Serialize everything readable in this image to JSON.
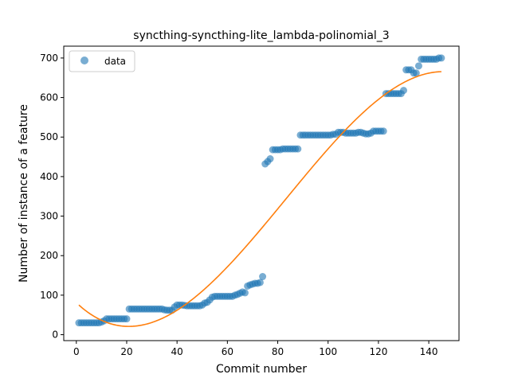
{
  "chart_data": {
    "type": "scatter",
    "title": "syncthing-syncthing-lite_lambda-polinomial_3",
    "xlabel": "Commit number",
    "ylabel": "Number of instance of a feature",
    "xlim": [
      -5,
      152
    ],
    "ylim": [
      -15,
      730
    ],
    "xticks": [
      0,
      20,
      40,
      60,
      80,
      100,
      120,
      140
    ],
    "yticks": [
      0,
      100,
      200,
      300,
      400,
      500,
      600,
      700
    ],
    "legend": {
      "position": "top-left",
      "entries": [
        "data"
      ]
    },
    "colors": {
      "data": "#1f77b4",
      "fit": "#ff7f0e"
    },
    "series": [
      {
        "name": "data",
        "kind": "scatter",
        "points": [
          [
            1,
            30
          ],
          [
            2,
            30
          ],
          [
            3,
            30
          ],
          [
            4,
            30
          ],
          [
            5,
            30
          ],
          [
            6,
            30
          ],
          [
            7,
            30
          ],
          [
            8,
            30
          ],
          [
            9,
            30
          ],
          [
            10,
            32
          ],
          [
            11,
            35
          ],
          [
            12,
            40
          ],
          [
            13,
            40
          ],
          [
            14,
            40
          ],
          [
            15,
            40
          ],
          [
            16,
            40
          ],
          [
            17,
            40
          ],
          [
            18,
            40
          ],
          [
            19,
            40
          ],
          [
            20,
            40
          ],
          [
            21,
            65
          ],
          [
            22,
            65
          ],
          [
            23,
            65
          ],
          [
            24,
            65
          ],
          [
            25,
            65
          ],
          [
            26,
            65
          ],
          [
            27,
            65
          ],
          [
            28,
            65
          ],
          [
            29,
            65
          ],
          [
            30,
            65
          ],
          [
            31,
            65
          ],
          [
            32,
            65
          ],
          [
            33,
            65
          ],
          [
            34,
            65
          ],
          [
            35,
            63
          ],
          [
            36,
            62
          ],
          [
            37,
            62
          ],
          [
            38,
            62
          ],
          [
            39,
            70
          ],
          [
            40,
            75
          ],
          [
            41,
            75
          ],
          [
            42,
            75
          ],
          [
            43,
            74
          ],
          [
            44,
            73
          ],
          [
            45,
            73
          ],
          [
            46,
            73
          ],
          [
            47,
            73
          ],
          [
            48,
            73
          ],
          [
            49,
            73
          ],
          [
            50,
            75
          ],
          [
            51,
            80
          ],
          [
            52,
            82
          ],
          [
            53,
            88
          ],
          [
            54,
            95
          ],
          [
            55,
            97
          ],
          [
            56,
            97
          ],
          [
            57,
            97
          ],
          [
            58,
            97
          ],
          [
            59,
            97
          ],
          [
            60,
            97
          ],
          [
            61,
            97
          ],
          [
            62,
            97
          ],
          [
            63,
            100
          ],
          [
            64,
            102
          ],
          [
            65,
            105
          ],
          [
            66,
            108
          ],
          [
            67,
            106
          ],
          [
            68,
            123
          ],
          [
            69,
            126
          ],
          [
            70,
            128
          ],
          [
            71,
            130
          ],
          [
            72,
            130
          ],
          [
            73,
            132
          ],
          [
            74,
            147
          ],
          [
            75,
            432
          ],
          [
            76,
            438
          ],
          [
            77,
            445
          ],
          [
            78,
            468
          ],
          [
            79,
            468
          ],
          [
            80,
            468
          ],
          [
            81,
            468
          ],
          [
            82,
            470
          ],
          [
            83,
            470
          ],
          [
            84,
            470
          ],
          [
            85,
            470
          ],
          [
            86,
            470
          ],
          [
            87,
            470
          ],
          [
            88,
            470
          ],
          [
            89,
            505
          ],
          [
            90,
            505
          ],
          [
            91,
            505
          ],
          [
            92,
            505
          ],
          [
            93,
            505
          ],
          [
            94,
            505
          ],
          [
            95,
            505
          ],
          [
            96,
            505
          ],
          [
            97,
            505
          ],
          [
            98,
            505
          ],
          [
            99,
            505
          ],
          [
            100,
            505
          ],
          [
            101,
            505
          ],
          [
            102,
            507
          ],
          [
            103,
            507
          ],
          [
            104,
            512
          ],
          [
            105,
            512
          ],
          [
            106,
            512
          ],
          [
            107,
            510
          ],
          [
            108,
            510
          ],
          [
            109,
            510
          ],
          [
            110,
            510
          ],
          [
            111,
            510
          ],
          [
            112,
            512
          ],
          [
            113,
            512
          ],
          [
            114,
            510
          ],
          [
            115,
            508
          ],
          [
            116,
            508
          ],
          [
            117,
            510
          ],
          [
            118,
            515
          ],
          [
            119,
            515
          ],
          [
            120,
            515
          ],
          [
            121,
            515
          ],
          [
            122,
            515
          ],
          [
            123,
            610
          ],
          [
            124,
            610
          ],
          [
            125,
            610
          ],
          [
            126,
            610
          ],
          [
            127,
            610
          ],
          [
            128,
            610
          ],
          [
            129,
            610
          ],
          [
            130,
            618
          ],
          [
            131,
            670
          ],
          [
            132,
            670
          ],
          [
            133,
            670
          ],
          [
            134,
            662
          ],
          [
            135,
            662
          ],
          [
            136,
            680
          ],
          [
            137,
            697
          ],
          [
            138,
            697
          ],
          [
            139,
            697
          ],
          [
            140,
            697
          ],
          [
            141,
            697
          ],
          [
            142,
            697
          ],
          [
            143,
            697
          ],
          [
            144,
            700
          ],
          [
            145,
            700
          ]
        ]
      },
      {
        "name": "",
        "kind": "line",
        "polynomial_degree": 3,
        "x_range": [
          1,
          145
        ],
        "anchor_points": [
          [
            1,
            76
          ],
          [
            20,
            19
          ],
          [
            60,
            174
          ],
          [
            100,
            468
          ],
          [
            140,
            665
          ],
          [
            145,
            663
          ]
        ]
      }
    ]
  }
}
